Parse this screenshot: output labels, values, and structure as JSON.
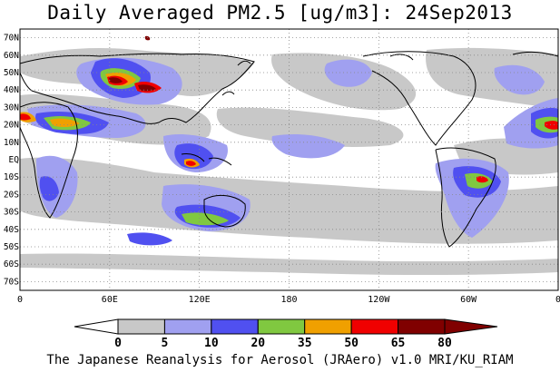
{
  "title": "Daily Averaged PM2.5 [ug/m3]: 24Sep2013",
  "footer": "The Japanese Reanalysis for Aerosol (JRAero) v1.0 MRI/KU_RIAM",
  "map": {
    "lat_labels": [
      "70N",
      "60N",
      "50N",
      "40N",
      "30N",
      "20N",
      "10N",
      "EQ",
      "10S",
      "20S",
      "30S",
      "40S",
      "50S",
      "60S",
      "70S"
    ],
    "lon_labels": [
      "0",
      "60E",
      "120E",
      "180",
      "120W",
      "60W",
      "0"
    ],
    "grid": true
  },
  "colorbar": {
    "bounds": [
      "0",
      "5",
      "10",
      "20",
      "35",
      "50",
      "65",
      "80"
    ],
    "colors": [
      "#ffffff",
      "#c8c8c8",
      "#a0a0f0",
      "#5050f0",
      "#80c840",
      "#f0a000",
      "#f00000",
      "#800000"
    ]
  }
}
